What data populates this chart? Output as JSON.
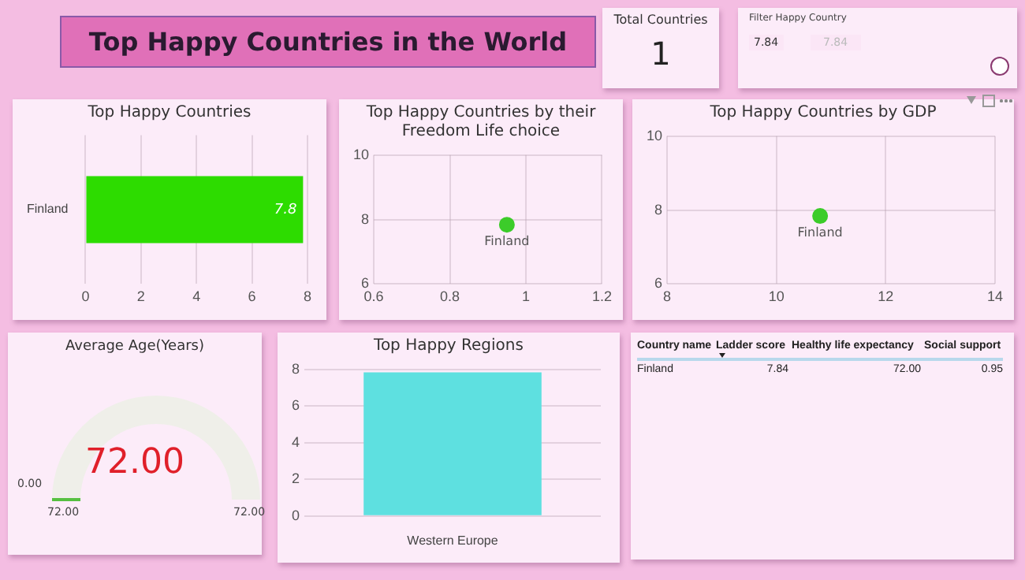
{
  "chart_data": [
    {
      "type": "other",
      "title": "Top Happy Countries in the World"
    },
    {
      "type": "other",
      "title": "Total Countries",
      "annotations": [
        "1"
      ]
    },
    {
      "type": "other",
      "title": "Filter Happy Country",
      "annotations": [
        "7.84",
        "7.84"
      ]
    },
    {
      "type": "bar",
      "orientation": "horizontal",
      "title": "Top Happy Countries",
      "categories": [
        "Finland"
      ],
      "values": [
        7.84
      ],
      "value_labels": [
        "7.8"
      ],
      "color": "#2ddc00",
      "xlim": [
        0,
        8
      ],
      "xticks": [
        0,
        2,
        4,
        6,
        8
      ],
      "grid": "x"
    },
    {
      "type": "scatter",
      "title": "Top Happy Countries by their Freedom Life choice",
      "x": [
        0.95
      ],
      "values": [
        7.84
      ],
      "color": "#3ccc2a",
      "marker": "circle",
      "xlim": [
        0.6,
        1.2
      ],
      "xticks": [
        0.6,
        0.8,
        1.0,
        1.2
      ],
      "ylim": [
        6,
        10
      ],
      "yticks": [
        6,
        8,
        10
      ],
      "grid": true,
      "annotations": [
        {
          "text": "Finland",
          "x": 0.95,
          "y": 7.84
        }
      ]
    },
    {
      "type": "scatter",
      "title": "Top Happy Countries by GDP",
      "x": [
        10.8
      ],
      "values": [
        7.84
      ],
      "color": "#3ccc2a",
      "marker": "circle",
      "xlim": [
        8,
        14
      ],
      "xticks": [
        8,
        10,
        12,
        14
      ],
      "ylim": [
        6,
        10
      ],
      "yticks": [
        6,
        8,
        10
      ],
      "grid": true,
      "annotations": [
        {
          "text": "Finland",
          "x": 10.8,
          "y": 7.84
        }
      ]
    },
    {
      "type": "other",
      "title": "Average Age(Years)",
      "annotations": [
        "72.00",
        "0.00",
        "72.00",
        "72.00"
      ]
    },
    {
      "type": "bar",
      "title": "Top Happy Regions",
      "categories": [
        "Western Europe"
      ],
      "values": [
        7.84
      ],
      "color": "#5ee0e0",
      "ylim": [
        0,
        8
      ],
      "yticks": [
        0,
        2,
        4,
        6,
        8
      ],
      "grid": "y"
    },
    {
      "type": "other",
      "annotations": [
        "Country name",
        "Ladder score",
        "Healthy life expectancy",
        "Social support",
        "Finland",
        "7.84",
        "72.00",
        "0.95"
      ]
    }
  ]
}
